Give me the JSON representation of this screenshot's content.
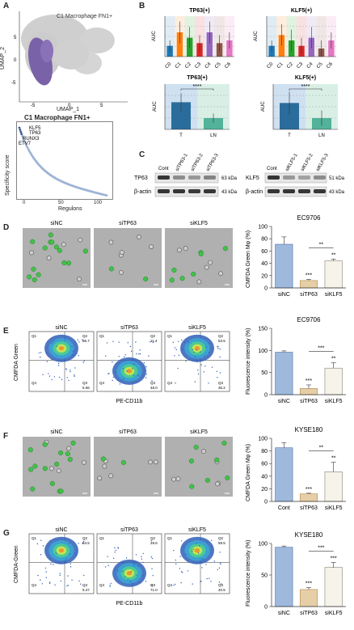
{
  "panels": {
    "A": "A",
    "B": "B",
    "C": "C",
    "D": "D",
    "E": "E",
    "F": "F",
    "G": "G"
  },
  "umap": {
    "title": "C1 Macrophage FN1+",
    "xlabel": "UMAP_1",
    "ylabel": "UMAP_2",
    "xticks": [
      "-5",
      "0",
      "5"
    ],
    "yticks": [
      "5",
      "0",
      "-5"
    ]
  },
  "rank": {
    "title": "C1 Macrophage FN1+",
    "xlabel": "Regulons",
    "ylabel": "Specificity score",
    "xticks": [
      "0",
      "50",
      "100"
    ],
    "genes": [
      "KLF5",
      "TP63",
      "RUNX3",
      "ETV7"
    ]
  },
  "chart_data": [
    {
      "type": "bar",
      "title": "TP63(+)",
      "ylabel": "AUC",
      "categories": [
        "C0",
        "C1",
        "C2",
        "C3",
        "C4",
        "C5",
        "C6"
      ],
      "values": [
        0.04,
        0.09,
        0.07,
        0.05,
        0.09,
        0.05,
        0.06
      ],
      "errors": [
        0.02,
        0.04,
        0.04,
        0.03,
        0.04,
        0.03,
        0.03
      ],
      "colors": [
        "#1f77b4",
        "#ff7f0e",
        "#2ca02c",
        "#d62728",
        "#9467bd",
        "#8c564b",
        "#e377c2"
      ]
    },
    {
      "type": "bar",
      "title": "KLF5(+)",
      "ylabel": "AUC",
      "categories": [
        "C0",
        "C1",
        "C2",
        "C3",
        "C4",
        "C5",
        "C6"
      ],
      "values": [
        0.04,
        0.08,
        0.06,
        0.04,
        0.07,
        0.03,
        0.06
      ],
      "errors": [
        0.02,
        0.04,
        0.04,
        0.03,
        0.04,
        0.03,
        0.03
      ],
      "colors": [
        "#1f77b4",
        "#ff7f0e",
        "#2ca02c",
        "#d62728",
        "#9467bd",
        "#8c564b",
        "#e377c2"
      ]
    },
    {
      "type": "bar",
      "title": "TP63(+)",
      "ylabel": "AUC",
      "categories": [
        "T",
        "LN"
      ],
      "values": [
        0.12,
        0.05
      ],
      "errors": [
        0.04,
        0.02
      ],
      "sig": "****"
    },
    {
      "type": "bar",
      "title": "KLF5(+)",
      "ylabel": "AUC",
      "categories": [
        "T",
        "LN"
      ],
      "values": [
        0.07,
        0.03
      ],
      "errors": [
        0.03,
        0.02
      ],
      "sig": "****"
    },
    {
      "type": "bar",
      "title": "EC9706",
      "ylabel": "CMFDA Green Mφ (%)",
      "categories": [
        "siNC",
        "siTP63",
        "siKLF5"
      ],
      "values": [
        71,
        12,
        44
      ],
      "errors": [
        12,
        2,
        3
      ],
      "ylim": [
        0,
        100
      ],
      "yticks": [
        0,
        20,
        40,
        60,
        80,
        100
      ],
      "sigs": [
        "",
        "***",
        "**"
      ],
      "bracket": "**"
    },
    {
      "type": "bar",
      "title": "EC9706",
      "ylabel": "Fluorescence intensity (%)",
      "categories": [
        "siNC",
        "siTP63",
        "siKLF5"
      ],
      "values": [
        96,
        14,
        60
      ],
      "errors": [
        3,
        8,
        12
      ],
      "ylim": [
        0,
        150
      ],
      "yticks": [
        0,
        50,
        100,
        150
      ],
      "sigs": [
        "",
        "***",
        "**"
      ],
      "bracket": "***"
    },
    {
      "type": "bar",
      "title": "KYSE180",
      "ylabel": "CMFDA Green Mφ (%)",
      "categories": [
        "Cont",
        "siTP63",
        "siKLF5"
      ],
      "values": [
        85,
        12,
        47
      ],
      "errors": [
        8,
        1,
        15
      ],
      "ylim": [
        0,
        100
      ],
      "yticks": [
        0,
        20,
        40,
        60,
        80,
        100
      ],
      "sigs": [
        "",
        "***",
        "**"
      ],
      "bracket": "**"
    },
    {
      "type": "bar",
      "title": "KYSE180",
      "ylabel": "Fluorescence intensity (%)",
      "categories": [
        "siNC",
        "siTP63",
        "siKLF5"
      ],
      "values": [
        94,
        27,
        62
      ],
      "errors": [
        2,
        3,
        8
      ],
      "ylim": [
        0,
        100
      ],
      "yticks": [
        0,
        50,
        100
      ],
      "sigs": [
        "",
        "***",
        "***"
      ],
      "bracket": "***"
    }
  ],
  "western": {
    "left": {
      "lanes": [
        "Cont",
        "siTP63-1",
        "siTP63-2",
        "siTP63-3"
      ],
      "rows": [
        "TP63",
        "β-actin"
      ],
      "kda": [
        "63 kDa",
        "43 kDa"
      ]
    },
    "right": {
      "lanes": [
        "Cont",
        "siKLF5-1",
        "siKLF5-2",
        "siKLF5-3"
      ],
      "rows": [
        "KLF5",
        "β-actin"
      ],
      "kda": [
        "51 kDa",
        "43 kDa"
      ]
    }
  },
  "microscopy": {
    "D": [
      "siNC",
      "siTP63",
      "siKLF5"
    ],
    "F": [
      "siNC",
      "siTP63",
      "siKLF5"
    ]
  },
  "flow": {
    "E": {
      "titles": [
        "siNC",
        "siTP63",
        "siKLF5"
      ],
      "ylabel": "CMFDA Green",
      "xlabel": "PE-CD11b",
      "quads": [
        [
          "Q1",
          "Q2",
          "Q4",
          "Q3"
        ],
        [
          "Q1",
          "Q2",
          "Q4",
          "Q3"
        ],
        [
          "Q1",
          "Q2",
          "Q4",
          "Q3"
        ]
      ],
      "values": [
        [
          "",
          "86.7",
          "",
          "5.06"
        ],
        [
          "",
          "11.4",
          "",
          "48.0"
        ],
        [
          "",
          "53.5",
          "",
          "36.2"
        ]
      ]
    },
    "G": {
      "titles": [
        "siNC",
        "siTP63",
        "siKLF5"
      ],
      "ylabel": "CMFDA-Green",
      "xlabel": "PE-CD11b",
      "quads": [
        [
          "Q1",
          "Q2",
          "Q4",
          "Q3"
        ],
        [
          "Q1",
          "Q2",
          "Q4",
          "Q3"
        ],
        [
          "Q1",
          "Q2",
          "Q4",
          "Q3"
        ]
      ],
      "values": [
        [
          "",
          "94.5",
          "",
          "5.47"
        ],
        [
          "",
          "29.6",
          "",
          "71.0"
        ],
        [
          "",
          "59.5",
          "",
          "40.5"
        ]
      ]
    }
  }
}
